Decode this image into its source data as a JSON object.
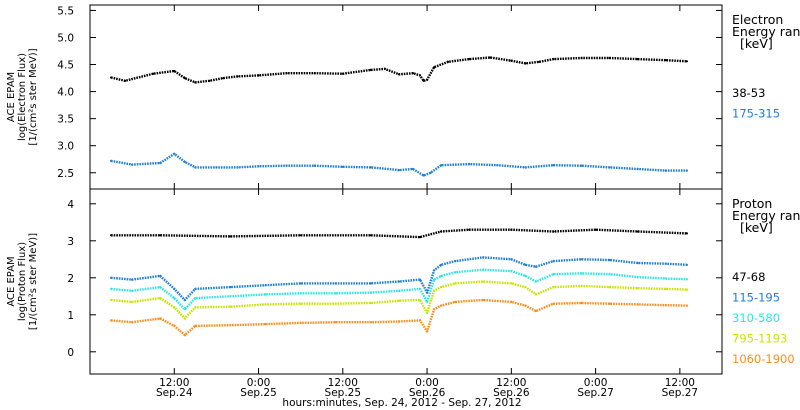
{
  "chart_data": [
    {
      "type": "scatter",
      "panel": "electron",
      "ylabel": [
        "ACE EPAM",
        "log(Electron Flux)",
        "[1/(cm²s ster MeV)]"
      ],
      "ylim": [
        2.2,
        5.6
      ],
      "yticks": [
        "2.5",
        "3.0",
        "3.5",
        "4.0",
        "4.5",
        "5.0",
        "5.5"
      ],
      "legend": {
        "title": [
          "Electron",
          "Energy range",
          "[keV]"
        ]
      },
      "series": [
        {
          "name": "38-53",
          "color": "#000000",
          "points": [
            [
              3,
              4.26
            ],
            [
              5,
              4.2
            ],
            [
              9,
              4.33
            ],
            [
              12,
              4.38
            ],
            [
              13.5,
              4.25
            ],
            [
              15,
              4.17
            ],
            [
              17,
              4.2
            ],
            [
              19,
              4.25
            ],
            [
              21,
              4.28
            ],
            [
              24,
              4.3
            ],
            [
              28,
              4.34
            ],
            [
              32,
              4.34
            ],
            [
              36,
              4.33
            ],
            [
              40,
              4.4
            ],
            [
              42,
              4.42
            ],
            [
              44,
              4.32
            ],
            [
              46,
              4.34
            ],
            [
              47,
              4.3
            ],
            [
              47.5,
              4.2
            ],
            [
              48,
              4.22
            ],
            [
              49,
              4.45
            ],
            [
              51,
              4.55
            ],
            [
              54,
              4.6
            ],
            [
              57,
              4.63
            ],
            [
              60,
              4.57
            ],
            [
              62,
              4.52
            ],
            [
              64,
              4.55
            ],
            [
              66,
              4.6
            ],
            [
              70,
              4.62
            ],
            [
              74,
              4.62
            ],
            [
              78,
              4.6
            ],
            [
              82,
              4.58
            ],
            [
              85,
              4.56
            ]
          ]
        },
        {
          "name": "175-315",
          "color": "#1f7fd6",
          "points": [
            [
              3,
              2.72
            ],
            [
              6,
              2.65
            ],
            [
              10,
              2.68
            ],
            [
              12,
              2.85
            ],
            [
              13.5,
              2.7
            ],
            [
              15,
              2.6
            ],
            [
              18,
              2.6
            ],
            [
              21,
              2.6
            ],
            [
              24,
              2.62
            ],
            [
              28,
              2.63
            ],
            [
              32,
              2.63
            ],
            [
              36,
              2.61
            ],
            [
              40,
              2.6
            ],
            [
              44,
              2.55
            ],
            [
              46,
              2.57
            ],
            [
              47.5,
              2.45
            ],
            [
              48.5,
              2.5
            ],
            [
              50,
              2.64
            ],
            [
              54,
              2.66
            ],
            [
              58,
              2.64
            ],
            [
              62,
              2.6
            ],
            [
              66,
              2.64
            ],
            [
              70,
              2.63
            ],
            [
              74,
              2.6
            ],
            [
              78,
              2.57
            ],
            [
              82,
              2.54
            ],
            [
              85,
              2.54
            ]
          ]
        }
      ]
    },
    {
      "type": "scatter",
      "panel": "proton",
      "ylabel": [
        "ACE EPAM",
        "log(Proton Flux)",
        "[1/(cm²s ster MeV)]"
      ],
      "ylim": [
        -0.6,
        4.4
      ],
      "yticks": [
        "0",
        "1",
        "2",
        "3",
        "4"
      ],
      "legend": {
        "title": [
          "Proton",
          "Energy range",
          "[keV]"
        ]
      },
      "series": [
        {
          "name": "47-68",
          "color": "#000000",
          "points": [
            [
              3,
              3.15
            ],
            [
              10,
              3.15
            ],
            [
              20,
              3.12
            ],
            [
              30,
              3.15
            ],
            [
              40,
              3.15
            ],
            [
              47,
              3.1
            ],
            [
              50,
              3.25
            ],
            [
              54,
              3.3
            ],
            [
              60,
              3.3
            ],
            [
              66,
              3.25
            ],
            [
              72,
              3.3
            ],
            [
              78,
              3.25
            ],
            [
              85,
              3.2
            ]
          ]
        },
        {
          "name": "115-195",
          "color": "#1f7fd6",
          "points": [
            [
              3,
              2.0
            ],
            [
              6,
              1.95
            ],
            [
              10,
              2.05
            ],
            [
              12,
              1.7
            ],
            [
              13.5,
              1.4
            ],
            [
              15,
              1.7
            ],
            [
              20,
              1.75
            ],
            [
              25,
              1.8
            ],
            [
              30,
              1.85
            ],
            [
              35,
              1.85
            ],
            [
              40,
              1.85
            ],
            [
              44,
              1.9
            ],
            [
              47,
              1.95
            ],
            [
              48,
              1.6
            ],
            [
              49,
              2.2
            ],
            [
              50,
              2.35
            ],
            [
              52,
              2.45
            ],
            [
              56,
              2.55
            ],
            [
              60,
              2.5
            ],
            [
              62,
              2.35
            ],
            [
              63.5,
              2.3
            ],
            [
              66,
              2.45
            ],
            [
              70,
              2.5
            ],
            [
              74,
              2.48
            ],
            [
              78,
              2.4
            ],
            [
              82,
              2.38
            ],
            [
              85,
              2.35
            ]
          ]
        },
        {
          "name": "310-580",
          "color": "#2ee6e6",
          "points": [
            [
              3,
              1.7
            ],
            [
              6,
              1.65
            ],
            [
              10,
              1.75
            ],
            [
              12,
              1.45
            ],
            [
              13.5,
              1.15
            ],
            [
              15,
              1.45
            ],
            [
              20,
              1.5
            ],
            [
              25,
              1.55
            ],
            [
              30,
              1.58
            ],
            [
              35,
              1.58
            ],
            [
              40,
              1.6
            ],
            [
              44,
              1.65
            ],
            [
              47,
              1.7
            ],
            [
              48,
              1.35
            ],
            [
              49,
              1.95
            ],
            [
              50,
              2.05
            ],
            [
              52,
              2.15
            ],
            [
              56,
              2.22
            ],
            [
              60,
              2.18
            ],
            [
              62,
              2.05
            ],
            [
              63.5,
              1.9
            ],
            [
              66,
              2.1
            ],
            [
              70,
              2.12
            ],
            [
              74,
              2.1
            ],
            [
              78,
              2.02
            ],
            [
              82,
              1.98
            ],
            [
              85,
              1.96
            ]
          ]
        },
        {
          "name": "795-1193",
          "color": "#c7e600",
          "points": [
            [
              3,
              1.4
            ],
            [
              6,
              1.35
            ],
            [
              10,
              1.45
            ],
            [
              12,
              1.2
            ],
            [
              13.5,
              0.9
            ],
            [
              15,
              1.2
            ],
            [
              20,
              1.22
            ],
            [
              25,
              1.28
            ],
            [
              30,
              1.3
            ],
            [
              35,
              1.3
            ],
            [
              40,
              1.32
            ],
            [
              44,
              1.38
            ],
            [
              47,
              1.4
            ],
            [
              48,
              1.05
            ],
            [
              49,
              1.65
            ],
            [
              50,
              1.75
            ],
            [
              52,
              1.85
            ],
            [
              56,
              1.9
            ],
            [
              60,
              1.85
            ],
            [
              62,
              1.75
            ],
            [
              63.5,
              1.55
            ],
            [
              66,
              1.75
            ],
            [
              70,
              1.78
            ],
            [
              74,
              1.75
            ],
            [
              78,
              1.72
            ],
            [
              82,
              1.7
            ],
            [
              85,
              1.68
            ]
          ]
        },
        {
          "name": "1060-1900",
          "color": "#ff8c1a",
          "points": [
            [
              3,
              0.85
            ],
            [
              6,
              0.8
            ],
            [
              10,
              0.9
            ],
            [
              12,
              0.7
            ],
            [
              13.5,
              0.45
            ],
            [
              15,
              0.7
            ],
            [
              20,
              0.72
            ],
            [
              25,
              0.75
            ],
            [
              30,
              0.78
            ],
            [
              35,
              0.8
            ],
            [
              40,
              0.8
            ],
            [
              44,
              0.82
            ],
            [
              47,
              0.85
            ],
            [
              48,
              0.55
            ],
            [
              49,
              1.15
            ],
            [
              50,
              1.25
            ],
            [
              52,
              1.35
            ],
            [
              56,
              1.4
            ],
            [
              60,
              1.35
            ],
            [
              62,
              1.25
            ],
            [
              63.5,
              1.1
            ],
            [
              66,
              1.3
            ],
            [
              70,
              1.32
            ],
            [
              74,
              1.3
            ],
            [
              78,
              1.28
            ],
            [
              82,
              1.26
            ],
            [
              85,
              1.25
            ]
          ]
        }
      ]
    }
  ],
  "x_axis": {
    "range_hours": [
      0,
      90
    ],
    "ticks": [
      {
        "hour": 12,
        "time": "12:00",
        "date": "Sep.24"
      },
      {
        "hour": 24,
        "time": "0:00",
        "date": "Sep.25"
      },
      {
        "hour": 36,
        "time": "12:00",
        "date": "Sep.25"
      },
      {
        "hour": 48,
        "time": "0:00",
        "date": "Sep.26"
      },
      {
        "hour": 60,
        "time": "12:00",
        "date": "Sep.26"
      },
      {
        "hour": 72,
        "time": "0:00",
        "date": "Sep.27"
      },
      {
        "hour": 84,
        "time": "12:00",
        "date": "Sep.27"
      }
    ],
    "title": "hours:minutes, Sep. 24, 2012 - Sep. 27, 2012"
  }
}
